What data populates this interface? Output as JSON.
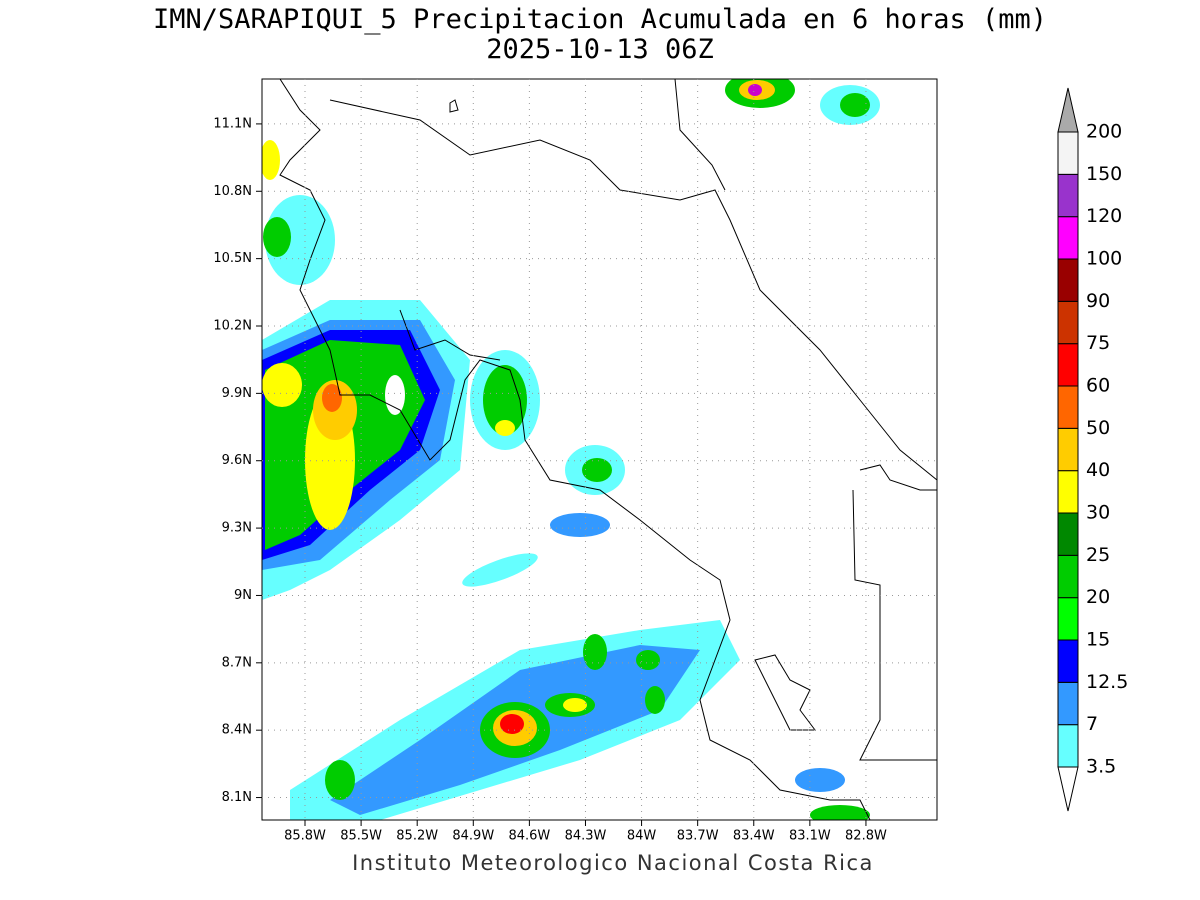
{
  "header": {
    "title": "IMN/SARAPIQUI_5 Precipitacion Acumulada en 6 horas (mm)",
    "subtitle": "2025-10-13 06Z"
  },
  "map": {
    "xlim": [
      -86.03,
      -82.42
    ],
    "ylim": [
      8.0,
      11.3
    ],
    "xticks": [
      {
        "value": -85.8,
        "label": "85.8W"
      },
      {
        "value": -85.5,
        "label": "85.5W"
      },
      {
        "value": -85.2,
        "label": "85.2W"
      },
      {
        "value": -84.9,
        "label": "84.9W"
      },
      {
        "value": -84.6,
        "label": "84.6W"
      },
      {
        "value": -84.3,
        "label": "84.3W"
      },
      {
        "value": -84.0,
        "label": "84W"
      },
      {
        "value": -83.7,
        "label": "83.7W"
      },
      {
        "value": -83.4,
        "label": "83.4W"
      },
      {
        "value": -83.1,
        "label": "83.1W"
      },
      {
        "value": -82.8,
        "label": "82.8W"
      }
    ],
    "yticks": [
      {
        "value": 11.1,
        "label": "11.1N"
      },
      {
        "value": 10.8,
        "label": "10.8N"
      },
      {
        "value": 10.5,
        "label": "10.5N"
      },
      {
        "value": 10.2,
        "label": "10.2N"
      },
      {
        "value": 9.9,
        "label": "9.9N"
      },
      {
        "value": 9.6,
        "label": "9.6N"
      },
      {
        "value": 9.3,
        "label": "9.3N"
      },
      {
        "value": 9.0,
        "label": "9N"
      },
      {
        "value": 8.7,
        "label": "8.7N"
      },
      {
        "value": 8.4,
        "label": "8.4N"
      },
      {
        "value": 8.1,
        "label": "8.1N"
      }
    ],
    "grid": true
  },
  "legend": {
    "levels": [
      3.5,
      7,
      12.5,
      15,
      20,
      25,
      30,
      40,
      50,
      60,
      75,
      90,
      100,
      120,
      150,
      200
    ],
    "colors": [
      "#66ffff",
      "#3399ff",
      "#0000ff",
      "#00ff00",
      "#00cc00",
      "#008800",
      "#ffff00",
      "#ffcc00",
      "#ff6600",
      "#ff0000",
      "#cc3300",
      "#990000",
      "#ff00ff",
      "#9933cc",
      "#f4f4f4"
    ],
    "over_color": "#aaaaaa",
    "under_color": "#ffffff"
  },
  "footer": "Instituto Meteorologico Nacional Costa Rica"
}
